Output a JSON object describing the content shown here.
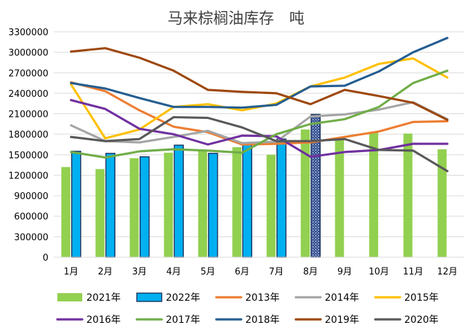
{
  "chart_data": {
    "type": "bar",
    "title": "马来棕榈油库存　吨",
    "categories": [
      "1月",
      "2月",
      "3月",
      "4月",
      "5月",
      "6月",
      "7月",
      "8月",
      "9月",
      "10月",
      "11月",
      "12月"
    ],
    "ylim": [
      0,
      3300000
    ],
    "yticks": [
      0,
      300000,
      600000,
      900000,
      1200000,
      1500000,
      1800000,
      2100000,
      2400000,
      2700000,
      3000000,
      3300000
    ],
    "grid": true,
    "legend_position": "bottom",
    "bar_series": [
      {
        "name": "2021年",
        "color": "#92d050",
        "values": [
          1320000,
          1290000,
          1450000,
          1530000,
          1560000,
          1610000,
          1500000,
          1870000,
          1720000,
          1830000,
          1810000,
          1580000
        ]
      },
      {
        "name": "2022年",
        "color": "#00b0f0",
        "values": [
          1550000,
          1520000,
          1470000,
          1640000,
          1520000,
          1650000,
          1730000,
          2090000
        ]
      }
    ],
    "line_series": [
      {
        "name": "2013年",
        "color": "#ed7d31",
        "values": [
          2560000,
          2430000,
          2150000,
          1910000,
          1830000,
          1650000,
          1660000,
          1680000,
          1760000,
          1840000,
          1980000,
          1990000
        ]
      },
      {
        "name": "2014年",
        "color": "#a5a5a5",
        "values": [
          1930000,
          1700000,
          1680000,
          1760000,
          1850000,
          1670000,
          1690000,
          2060000,
          2090000,
          2160000,
          2270000,
          2020000
        ]
      },
      {
        "name": "2015年",
        "color": "#ffc000",
        "values": [
          2530000,
          1740000,
          1870000,
          2200000,
          2240000,
          2150000,
          2250000,
          2500000,
          2630000,
          2830000,
          2910000,
          2630000
        ]
      },
      {
        "name": "2016年",
        "color": "#7030a0",
        "values": [
          2300000,
          2170000,
          1880000,
          1800000,
          1650000,
          1780000,
          1770000,
          1470000,
          1540000,
          1570000,
          1660000,
          1660000
        ]
      },
      {
        "name": "2017年",
        "color": "#70ad47",
        "values": [
          1540000,
          1460000,
          1550000,
          1580000,
          1560000,
          1530000,
          1800000,
          1950000,
          2020000,
          2200000,
          2550000,
          2730000
        ]
      },
      {
        "name": "2018年",
        "color": "#255e91",
        "values": [
          2550000,
          2470000,
          2330000,
          2200000,
          2200000,
          2190000,
          2230000,
          2500000,
          2510000,
          2720000,
          3000000,
          3210000
        ]
      },
      {
        "name": "2019年",
        "color": "#9e480e",
        "values": [
          3010000,
          3060000,
          2920000,
          2730000,
          2450000,
          2420000,
          2400000,
          2240000,
          2450000,
          2360000,
          2260000,
          2010000
        ]
      },
      {
        "name": "2020年",
        "color": "#595959",
        "values": [
          1760000,
          1700000,
          1730000,
          2050000,
          2040000,
          1900000,
          1700000,
          1700000,
          1730000,
          1570000,
          1560000,
          1260000
        ]
      }
    ],
    "legend": {
      "row1": [
        "2021年",
        "2022年",
        "2013年",
        "2014年",
        "2015年"
      ],
      "row2": [
        "2016年",
        "2017年",
        "2018年",
        "2019年",
        "2020年"
      ]
    }
  }
}
